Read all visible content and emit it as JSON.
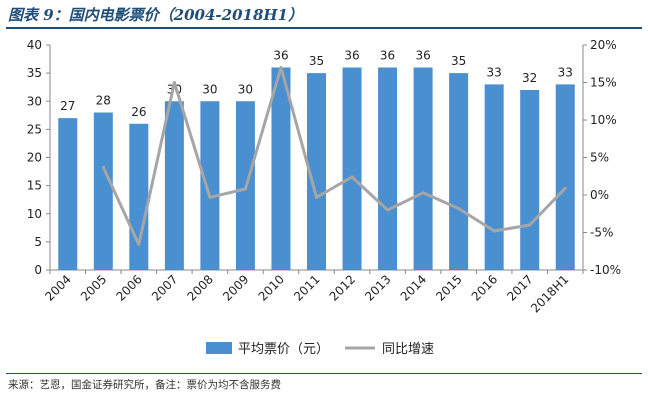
{
  "title": "图表 9：国内电影票价（2004-2018H1）",
  "source": "来源：艺恩，国金证券研究所，备注：票价为均不含服务费",
  "chart_data": {
    "type": "bar",
    "categories": [
      "2004",
      "2005",
      "2006",
      "2007",
      "2008",
      "2009",
      "2010",
      "2011",
      "2012",
      "2013",
      "2014",
      "2015",
      "2016",
      "2017",
      "2018H1"
    ],
    "series": [
      {
        "name": "平均票价（元）",
        "type": "bar",
        "axis": "left",
        "color": "#4a8fd0",
        "values": [
          27,
          28,
          26,
          30,
          30,
          30,
          36,
          35,
          36,
          36,
          36,
          35,
          33,
          32,
          33
        ],
        "labels": [
          "27",
          "28",
          "26",
          "30",
          "30",
          "30",
          "36",
          "35",
          "36",
          "36",
          "36",
          "35",
          "33",
          "32",
          "33"
        ]
      },
      {
        "name": "同比增速",
        "type": "line",
        "axis": "right",
        "color": "#a6a6a6",
        "values": [
          null,
          3.7,
          -6.6,
          15.0,
          -0.3,
          0.8,
          17.0,
          -0.3,
          2.4,
          -2.0,
          0.3,
          -1.8,
          -4.8,
          -4.0,
          0.9
        ]
      }
    ],
    "y_left": {
      "min": 0,
      "max": 40,
      "ticks": [
        "0",
        "5",
        "10",
        "15",
        "20",
        "25",
        "30",
        "35",
        "40"
      ]
    },
    "y_right": {
      "min": -10,
      "max": 20,
      "ticks": [
        "-10%",
        "-5%",
        "0%",
        "5%",
        "10%",
        "15%",
        "20%"
      ]
    },
    "grid": false,
    "legend_position": "bottom"
  }
}
